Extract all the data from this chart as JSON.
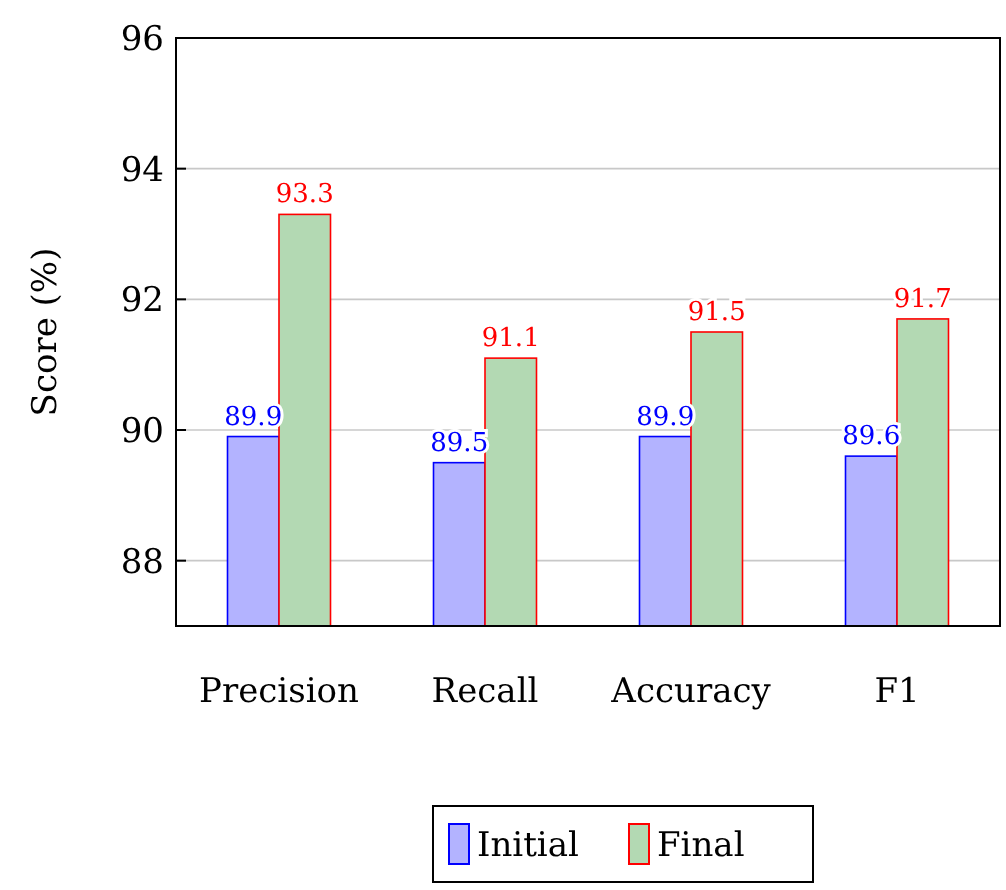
{
  "chart_data": {
    "type": "bar",
    "ylabel": "Score (%)",
    "categories": [
      "Precision",
      "Recall",
      "Accuracy",
      "F1"
    ],
    "series": [
      {
        "name": "Initial",
        "color": "#b3b3ff",
        "values": [
          89.9,
          89.5,
          89.9,
          89.6
        ]
      },
      {
        "name": "Final",
        "color": "#b3d9b3",
        "values": [
          93.3,
          91.1,
          91.5,
          91.7
        ]
      }
    ],
    "ylim": [
      87,
      96
    ],
    "yticks": [
      88,
      90,
      92,
      94,
      96
    ],
    "grid": "y",
    "legend": "bottom",
    "data_labels": true
  }
}
